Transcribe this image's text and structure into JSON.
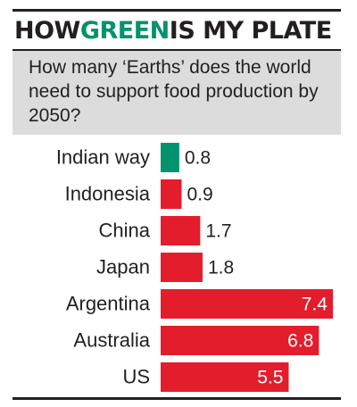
{
  "headline": {
    "part1": "HOW ",
    "accent": "GREEN",
    "part2": " IS MY PLATE"
  },
  "subtitle": "How many ‘Earths’ does the world need to support food production by 2050?",
  "colors": {
    "highlight": "#00936e",
    "bars": "#e31d2b",
    "panel": "#dcdcdc",
    "text": "#231f20"
  },
  "chart_data": {
    "type": "bar",
    "orientation": "horizontal",
    "categories": [
      "Indian way",
      "Indonesia",
      "China",
      "Japan",
      "Argentina",
      "Australia",
      "US"
    ],
    "values": [
      0.8,
      0.9,
      1.7,
      1.8,
      7.4,
      6.8,
      5.5
    ],
    "value_labels": [
      "0.8",
      "0.9",
      "1.7",
      "1.8",
      "7.4",
      "6.8",
      "5.5"
    ],
    "highlight_category": "Indian way",
    "xlim": [
      0,
      7.4
    ],
    "grid": false,
    "legend": "none"
  }
}
